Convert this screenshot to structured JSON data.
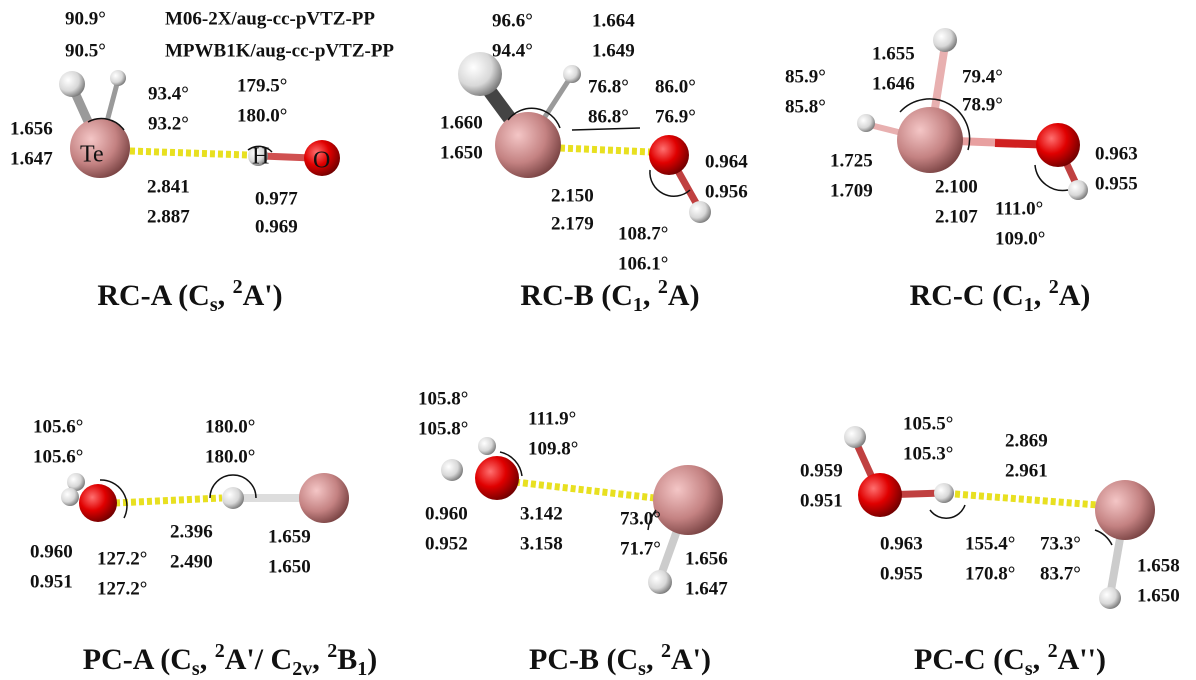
{
  "method_legend": [
    {
      "angle": "90.9°",
      "method": "M06-2X/aug-cc-pVTZ-PP"
    },
    {
      "angle": "90.5°",
      "method": "MPWB1K/aug-cc-pVTZ-PP"
    }
  ],
  "panels": [
    {
      "atoms": [
        "Te",
        "H",
        "O"
      ],
      "labels": [
        "93.4°",
        "93.2°",
        "179.5°",
        "180.0°",
        "1.656",
        "1.647",
        "2.841",
        "2.887",
        "0.977",
        "0.969"
      ],
      "title": [
        {
          "text": "RC-A (C"
        },
        {
          "sub": "s"
        },
        {
          "text": ", "
        },
        {
          "sup": "2"
        },
        {
          "text": "A')"
        }
      ]
    },
    {
      "labels": [
        "96.6°",
        "94.4°",
        "1.664",
        "1.649",
        "76.8°",
        "86.8°",
        "86.0°",
        "76.9°",
        "1.660",
        "1.650",
        "0.964",
        "0.956",
        "2.150",
        "2.179",
        "108.7°",
        "106.1°"
      ],
      "title": [
        {
          "text": "RC-B (C"
        },
        {
          "sub": "1"
        },
        {
          "text": ", "
        },
        {
          "sup": "2"
        },
        {
          "text": "A)"
        }
      ]
    },
    {
      "labels": [
        "1.655",
        "1.646",
        "85.9°",
        "85.8°",
        "79.4°",
        "78.9°",
        "1.725",
        "1.709",
        "0.963",
        "0.955",
        "2.100",
        "2.107",
        "111.0°",
        "109.0°"
      ],
      "title": [
        {
          "text": "RC-C (C"
        },
        {
          "sub": "1"
        },
        {
          "text": ", "
        },
        {
          "sup": "2"
        },
        {
          "text": "A)"
        }
      ]
    },
    {
      "labels": [
        "105.6°",
        "105.6°",
        "180.0°",
        "180.0°",
        "2.396",
        "2.490",
        "1.659",
        "1.650",
        "0.960",
        "0.951",
        "127.2°",
        "127.2°"
      ],
      "title": [
        {
          "text": "PC-A (C"
        },
        {
          "sub": "s"
        },
        {
          "text": ", "
        },
        {
          "sup": "2"
        },
        {
          "text": "A'/ C"
        },
        {
          "sub": "2v"
        },
        {
          "text": ", "
        },
        {
          "sup": "2"
        },
        {
          "text": "B"
        },
        {
          "sub": "1"
        },
        {
          "text": ")"
        }
      ]
    },
    {
      "labels": [
        "105.8°",
        "105.8°",
        "111.9°",
        "109.8°",
        "0.960",
        "0.952",
        "3.142",
        "3.158",
        "73.0°",
        "71.7°",
        "1.656",
        "1.647"
      ],
      "title": [
        {
          "text": "PC-B (C"
        },
        {
          "sub": "s"
        },
        {
          "text": ", "
        },
        {
          "sup": "2"
        },
        {
          "text": "A')"
        }
      ]
    },
    {
      "labels": [
        "105.5°",
        "105.3°",
        "2.869",
        "2.961",
        "0.959",
        "0.951",
        "0.963",
        "0.955",
        "155.4°",
        "170.8°",
        "73.3°",
        "83.7°",
        "1.658",
        "1.650"
      ],
      "title": [
        {
          "text": "PC-C (C"
        },
        {
          "sub": "s"
        },
        {
          "text": ", "
        },
        {
          "sup": "2"
        },
        {
          "text": "A'')"
        }
      ]
    }
  ]
}
